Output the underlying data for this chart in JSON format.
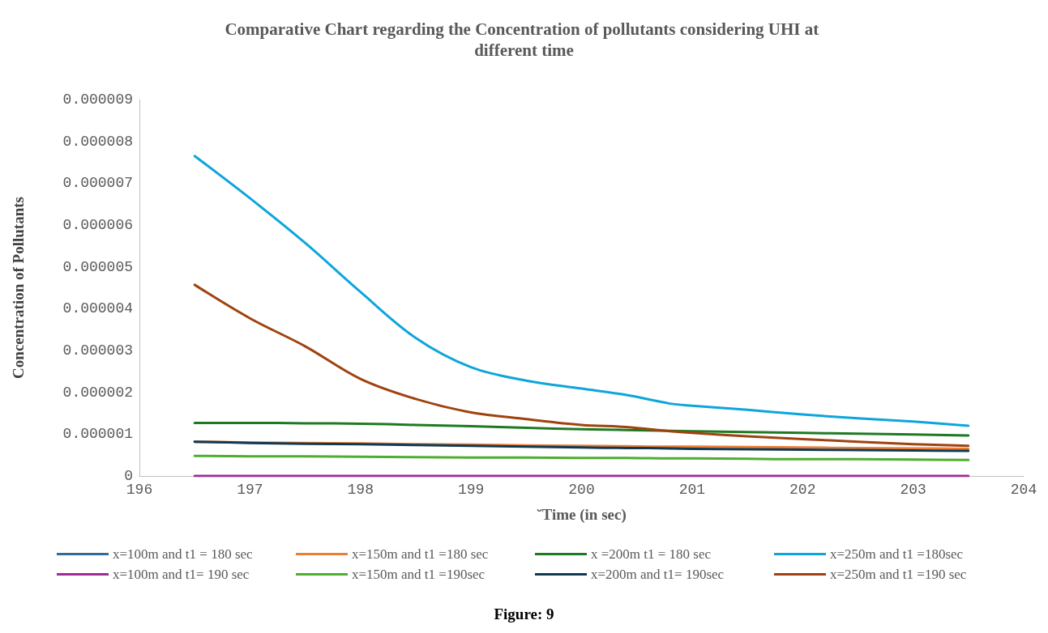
{
  "chart_data": {
    "type": "line",
    "title": "Comparative Chart regarding the Concentration of pollutants considering UHI at different time",
    "xlabel": "˘Time (in sec)",
    "ylabel": "Concentration of Pollutants",
    "annotations": [
      "Figure: 9"
    ],
    "x": [
      196.5,
      197,
      197.5,
      198,
      198.5,
      199,
      199.5,
      200,
      200.4,
      200.8,
      201,
      201.5,
      202,
      202.5,
      203,
      203.5
    ],
    "series": [
      {
        "name": "x=100m and t1 = 180 sec",
        "color": "#2e6e9e",
        "values": [
          null,
          null,
          null,
          null,
          null,
          null,
          null,
          null,
          null,
          null,
          null,
          null,
          null,
          null,
          null,
          null
        ]
      },
      {
        "name": "x=150m and t1 =180 sec",
        "color": "#ed7d31",
        "values": [
          8.2e-07,
          8e-07,
          7.9e-07,
          7.8e-07,
          7.6e-07,
          7.5e-07,
          7.3e-07,
          7.2e-07,
          7.1e-07,
          7e-07,
          7e-07,
          6.9e-07,
          6.8e-07,
          6.7e-07,
          6.6e-07,
          6.5e-07
        ]
      },
      {
        "name": "x =200m t1 = 180 sec",
        "color": "#1e7a22",
        "values": [
          1.27e-06,
          1.27e-06,
          1.26e-06,
          1.25e-06,
          1.22e-06,
          1.19e-06,
          1.15e-06,
          1.12e-06,
          1.1e-06,
          1.08e-06,
          1.07e-06,
          1.05e-06,
          1.03e-06,
          1.01e-06,
          9.9e-07,
          9.7e-07
        ]
      },
      {
        "name": "x=250m and t1 =180sec",
        "color": "#0ea5dc",
        "values": [
          7.65e-06,
          6.64e-06,
          5.57e-06,
          4.4e-06,
          3.3e-06,
          2.6e-06,
          2.28e-06,
          2.09e-06,
          1.94e-06,
          1.73e-06,
          1.68e-06,
          1.58e-06,
          1.47e-06,
          1.38e-06,
          1.3e-06,
          1.2e-06
        ]
      },
      {
        "name": "x=100m and t1= 190 sec",
        "color": "#a02b93",
        "values": [
          0,
          0,
          0,
          0,
          0,
          0,
          0,
          0,
          0,
          0,
          0,
          0,
          0,
          0,
          0,
          0
        ]
      },
      {
        "name": "x=150m and t1 =190sec",
        "color": "#4eae30",
        "values": [
          4.8e-07,
          4.7e-07,
          4.7e-07,
          4.6e-07,
          4.5e-07,
          4.4e-07,
          4.4e-07,
          4.3e-07,
          4.3e-07,
          4.2e-07,
          4.2e-07,
          4.1e-07,
          4e-07,
          4e-07,
          3.9e-07,
          3.8e-07
        ]
      },
      {
        "name": "x=200m and t1= 190sec",
        "color": "#0e3a55",
        "values": [
          8.2e-07,
          7.9e-07,
          7.7e-07,
          7.6e-07,
          7.4e-07,
          7.2e-07,
          7e-07,
          6.8e-07,
          6.7e-07,
          6.6e-07,
          6.5e-07,
          6.4e-07,
          6.3e-07,
          6.2e-07,
          6.1e-07,
          6e-07
        ]
      },
      {
        "name": "x=250m and t1 =190 sec",
        "color": "#a0420f",
        "values": [
          4.57e-06,
          3.77e-06,
          3.1e-06,
          2.32e-06,
          1.84e-06,
          1.52e-06,
          1.36e-06,
          1.22e-06,
          1.17e-06,
          1.07e-06,
          1.03e-06,
          9.5e-07,
          8.8e-07,
          8.2e-07,
          7.6e-07,
          7.2e-07
        ]
      }
    ],
    "xlim": [
      196,
      204
    ],
    "xticks": [
      196,
      197,
      198,
      199,
      200,
      201,
      202,
      203,
      204
    ],
    "ylim": [
      0,
      9e-06
    ],
    "yticks": [
      0,
      {
        "value": 1e-06,
        "label": "0.000001"
      },
      {
        "value": 2e-06,
        "label": "0.000002"
      },
      {
        "value": 3e-06,
        "label": "0.000003"
      },
      {
        "value": 4e-06,
        "label": "0.000004"
      },
      {
        "value": 5e-06,
        "label": "0.000005"
      },
      {
        "value": 6e-06,
        "label": "0.000006"
      },
      {
        "value": 7e-06,
        "label": "0.000007"
      },
      {
        "value": 8e-06,
        "label": "0.000008"
      },
      {
        "value": 9e-06,
        "label": "0.000009"
      }
    ],
    "grid": false,
    "legend": "bottom",
    "marker": "none",
    "line_style": "solid"
  }
}
